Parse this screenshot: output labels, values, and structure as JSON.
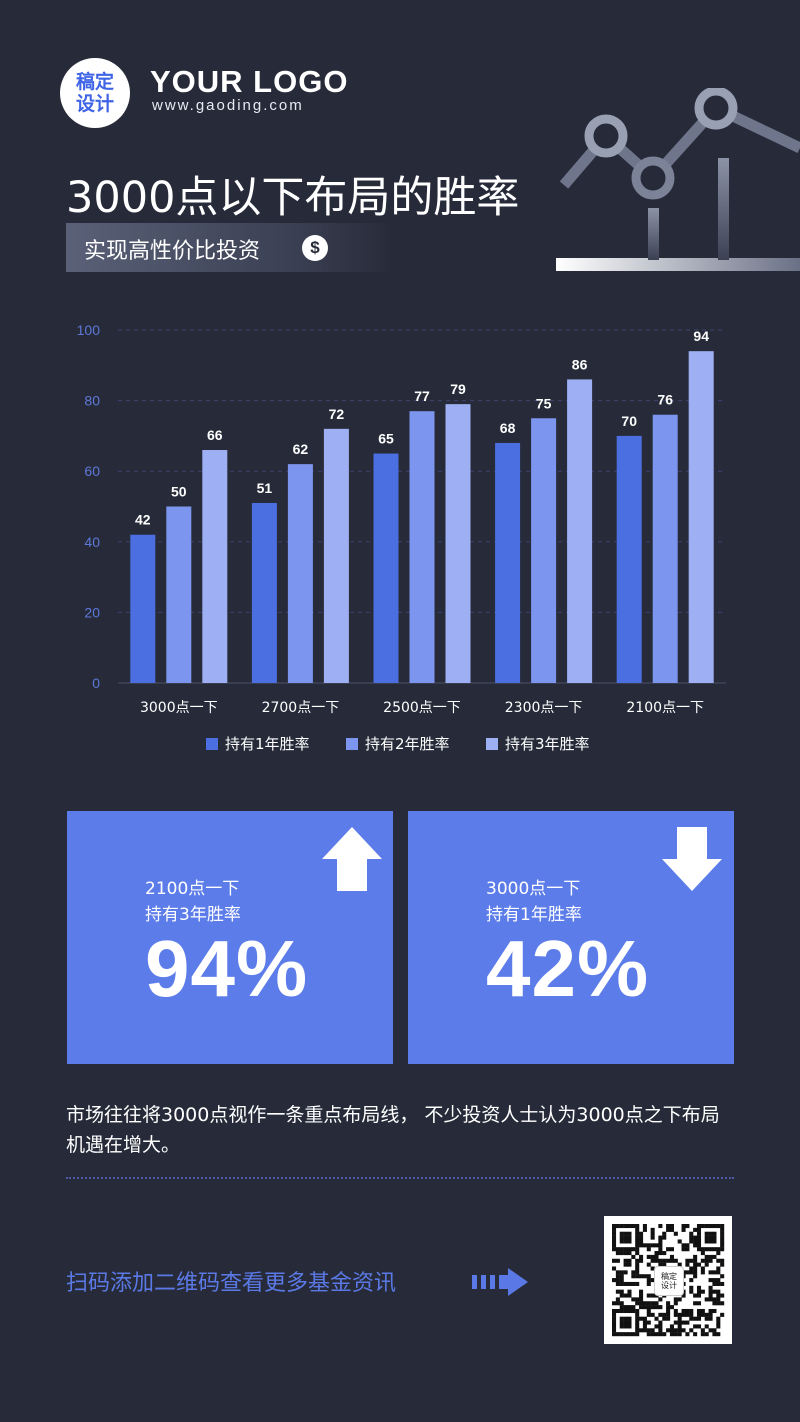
{
  "brand": {
    "badge_line1": "稿定",
    "badge_line2": "设计",
    "logo": "YOUR LOGO",
    "url": "www.gaoding.com"
  },
  "header": {
    "title": "3000点以下布局的胜率",
    "subtitle": "实现高性价比投资",
    "subtitle_icon": "dollar-icon"
  },
  "chart_data": {
    "type": "bar",
    "categories": [
      "3000点一下",
      "2700点一下",
      "2500点一下",
      "2300点一下",
      "2100点一下"
    ],
    "series": [
      {
        "name": "持有1年胜率",
        "values": [
          42,
          51,
          65,
          68,
          70
        ],
        "color": "#4b6fe1"
      },
      {
        "name": "持有2年胜率",
        "values": [
          50,
          62,
          77,
          75,
          76
        ],
        "color": "#7c95ee"
      },
      {
        "name": "持有3年胜率",
        "values": [
          66,
          72,
          79,
          86,
          94
        ],
        "color": "#9eb0f3"
      }
    ],
    "ylim": [
      0,
      100
    ],
    "yticks": [
      0,
      20,
      40,
      60,
      80,
      100
    ],
    "grid": true,
    "legend": "bottom"
  },
  "cards": [
    {
      "line1": "2100点一下",
      "line2": "持有3年胜率",
      "value": "94%",
      "icon": "arrow-up-icon"
    },
    {
      "line1": "3000点一下",
      "line2": "持有1年胜率",
      "value": "42%",
      "icon": "arrow-down-icon"
    }
  ],
  "paragraph": "市场往往将3000点视作一条重点布局线， 不少投资人士认为3000点之下布局机遇在增大。",
  "footer": {
    "scan_text": "扫码添加二维码查看更多基金资讯",
    "qr_badge_line1": "稿定",
    "qr_badge_line2": "设计"
  },
  "colors": {
    "background": "#272b39",
    "accent": "#5c7de9"
  }
}
